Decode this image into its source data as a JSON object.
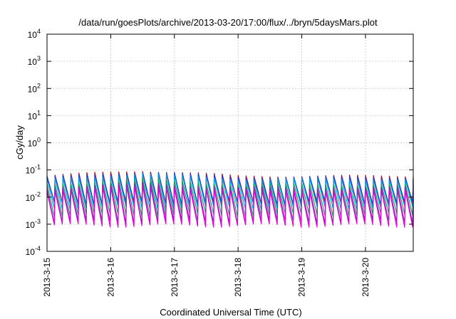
{
  "chart_data": {
    "type": "line",
    "title": "/data/run/goesPlots/archive/2013-03-20/17:00/flux/../bryn/5daysMars.plot",
    "xlabel": "Coordinated Universal Time (UTC)",
    "ylabel": "cGy/day",
    "xlim": [
      "2013-03-15",
      "2013-03-20 18:00"
    ],
    "ylim": [
      0.0001,
      10000
    ],
    "yscale": "log",
    "grid": true,
    "legend": "none",
    "x_ticks": [
      "2013-3-15",
      "2013-3-16",
      "2013-3-17",
      "2013-3-18",
      "2013-3-19",
      "2013-3-20"
    ],
    "y_ticks": [
      {
        "base": "10",
        "exp": "-4",
        "value": 0.0001
      },
      {
        "base": "10",
        "exp": "-3",
        "value": 0.001
      },
      {
        "base": "10",
        "exp": "-2",
        "value": 0.01
      },
      {
        "base": "10",
        "exp": "-1",
        "value": 0.1
      },
      {
        "base": "10",
        "exp": "0",
        "value": 1
      },
      {
        "base": "10",
        "exp": "1",
        "value": 10
      },
      {
        "base": "10",
        "exp": "2",
        "value": 100
      },
      {
        "base": "10",
        "exp": "3",
        "value": 1000
      },
      {
        "base": "10",
        "exp": "4",
        "value": 10000
      }
    ],
    "sawtooth_period_hours": 3,
    "series": [
      {
        "color": "#cc0000",
        "peak": 0.06,
        "trough": 0.0055,
        "peak_x": [
          "2013-03-16 12:00"
        ],
        "peak_max": 0.095
      },
      {
        "color": "#1f3fd6",
        "peak": 0.055,
        "trough": 0.006,
        "peak_x": [
          "2013-03-16 12:00"
        ],
        "peak_max": 0.085
      },
      {
        "color": "#00a0e0",
        "peak": 0.045,
        "trough": 0.004,
        "peak_x": [
          "2013-03-16 12:00"
        ],
        "peak_max": 0.07
      },
      {
        "color": "#11a65a",
        "peak": 0.03,
        "trough": 0.0022,
        "peak_x": [
          "2013-03-16 12:00"
        ],
        "peak_max": 0.045
      },
      {
        "color": "#8a1fb0",
        "peak": 0.022,
        "trough": 0.0012,
        "peak_x": [
          "2013-03-16 12:00"
        ],
        "peak_max": 0.032
      },
      {
        "color": "#e000d8",
        "peak": 0.017,
        "trough": 0.0009,
        "peak_x": [
          "2013-03-16 12:00"
        ],
        "peak_max": 0.025
      }
    ]
  }
}
